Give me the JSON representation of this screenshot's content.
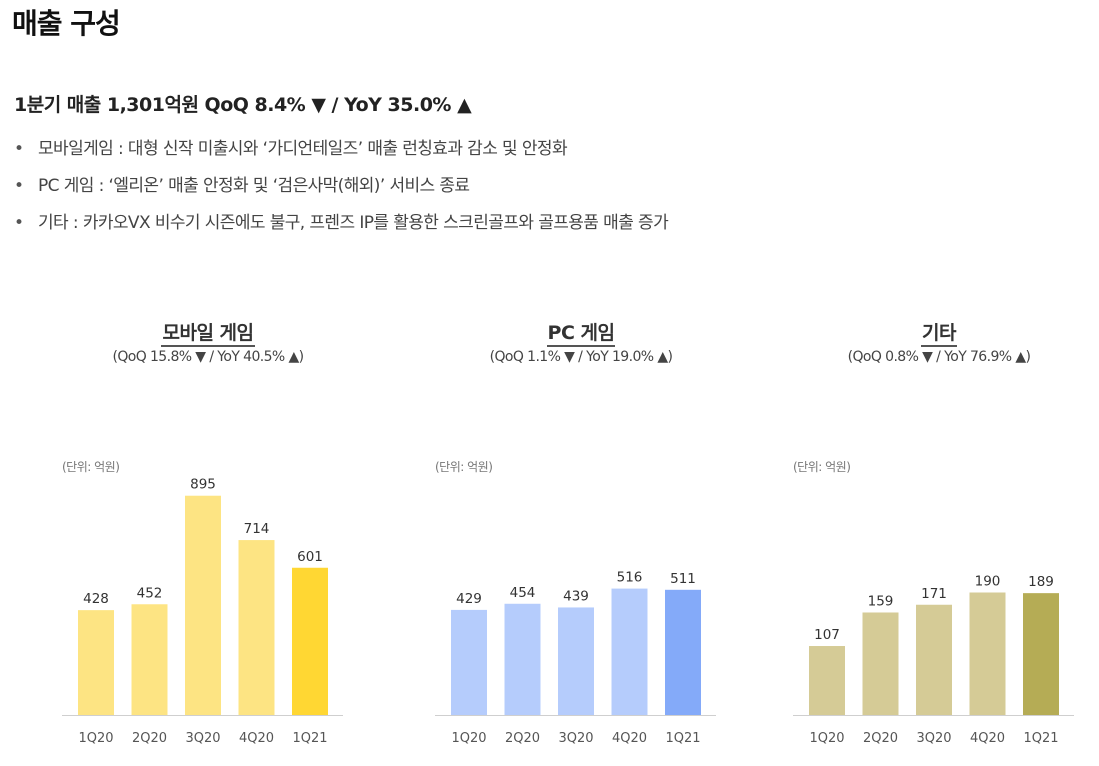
{
  "page": {
    "title": "매출 구성",
    "headline": "1분기 매출 1,301억원  QoQ 8.4% ▼ / YoY 35.0% ▲",
    "bullets": [
      "모바일게임 : 대형 신작 미출시와 ‘가디언테일즈’ 매출 런칭효과 감소 및 안정화",
      "PC 게임 : ‘엘리온’ 매출 안정화 및 ‘검은사막(해외)’ 서비스 종료",
      "기타 : 카카오VX 비수기 시즌에도 불구, 프렌즈 IP를 활용한 스크린골프와 골프용품 매출 증가"
    ],
    "bullet_symbol": "•"
  },
  "chart_data": [
    {
      "type": "bar",
      "title": "모바일 게임",
      "subtitle": "(QoQ 15.8% ▼ / YoY 40.5% ▲)",
      "unit_label": "(단위: 억원)",
      "categories": [
        "1Q20",
        "2Q20",
        "3Q20",
        "4Q20",
        "1Q21"
      ],
      "values": [
        428,
        452,
        895,
        714,
        601
      ],
      "ylim": [
        0,
        1000
      ],
      "colors": [
        "#FDE483",
        "#FDE483",
        "#FDE483",
        "#FDE483",
        "#FFD733"
      ],
      "grid": false,
      "legend": "none"
    },
    {
      "type": "bar",
      "title": "PC 게임",
      "subtitle": "(QoQ 1.1% ▼ / YoY 19.0% ▲)",
      "unit_label": "(단위: 억원)",
      "categories": [
        "1Q20",
        "2Q20",
        "3Q20",
        "4Q20",
        "1Q21"
      ],
      "values": [
        429,
        454,
        439,
        516,
        511
      ],
      "ylim": [
        0,
        1000
      ],
      "colors": [
        "#B5CCFC",
        "#B5CCFC",
        "#B5CCFC",
        "#B5CCFC",
        "#84AAF9"
      ],
      "grid": false,
      "legend": "none"
    },
    {
      "type": "bar",
      "title": "기타",
      "subtitle": "(QoQ 0.8% ▼ / YoY 76.9% ▲)",
      "unit_label": "(단위: 억원)",
      "categories": [
        "1Q20",
        "2Q20",
        "3Q20",
        "4Q20",
        "1Q21"
      ],
      "values": [
        107,
        159,
        171,
        190,
        189
      ],
      "ylim": [
        0,
        380
      ],
      "colors": [
        "#D5CB96",
        "#D5CB96",
        "#D5CB96",
        "#D5CB96",
        "#B5AC55"
      ],
      "grid": false,
      "legend": "none"
    }
  ]
}
